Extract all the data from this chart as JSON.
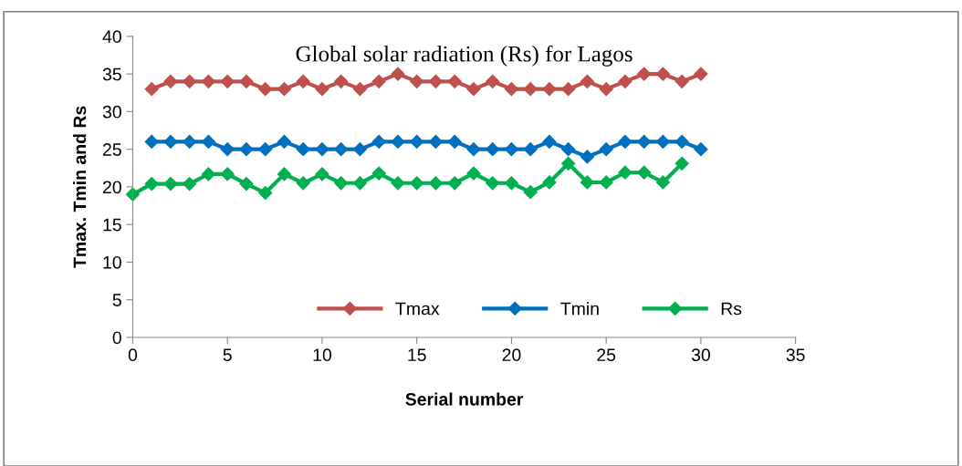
{
  "chart_data": {
    "type": "line",
    "title": "Global solar radiation (Rs) for Lagos",
    "xlabel": "Serial number",
    "ylabel": "Tmax. Tmin and Rs",
    "xlim": [
      0,
      35
    ],
    "xticks": [
      0,
      5,
      10,
      15,
      20,
      25,
      30,
      35
    ],
    "ylim": [
      0,
      40
    ],
    "yticks": [
      0,
      5,
      10,
      15,
      20,
      25,
      30,
      35,
      40
    ],
    "grid": false,
    "legend": "bottom",
    "marker": "diamond",
    "line_style": "solid",
    "series": [
      {
        "name": "Tmax",
        "color": "#c0504d",
        "x": [
          1,
          2,
          3,
          4,
          5,
          6,
          7,
          8,
          9,
          10,
          11,
          12,
          13,
          14,
          15,
          16,
          17,
          18,
          19,
          20,
          21,
          22,
          23,
          24,
          25,
          26,
          27,
          28,
          29,
          30
        ],
        "values": [
          33,
          34,
          34,
          34,
          34,
          34,
          33,
          33,
          34,
          33,
          34,
          33,
          34,
          35,
          34,
          34,
          34,
          33,
          34,
          33,
          33,
          33,
          33,
          34,
          33,
          34,
          35,
          35,
          34,
          35
        ]
      },
      {
        "name": "Tmin",
        "color": "#0070c0",
        "x": [
          1,
          2,
          3,
          4,
          5,
          6,
          7,
          8,
          9,
          10,
          11,
          12,
          13,
          14,
          15,
          16,
          17,
          18,
          19,
          20,
          21,
          22,
          23,
          24,
          25,
          26,
          27,
          28,
          29,
          30
        ],
        "values": [
          26,
          26,
          26,
          26,
          25,
          25,
          25,
          26,
          25,
          25,
          25,
          25,
          26,
          26,
          26,
          26,
          26,
          25,
          25,
          25,
          25,
          26,
          25,
          24,
          25,
          26,
          26,
          26,
          26,
          25
        ]
      },
      {
        "name": "Rs",
        "color": "#00b050",
        "x": [
          0,
          1,
          2,
          3,
          4,
          5,
          6,
          7,
          8,
          9,
          10,
          11,
          12,
          13,
          14,
          15,
          16,
          17,
          18,
          19,
          20,
          21,
          22,
          23,
          24,
          25,
          26,
          27,
          28,
          29
        ],
        "values": [
          19.0,
          20.4,
          20.4,
          20.4,
          21.7,
          21.7,
          20.4,
          19.2,
          21.7,
          20.5,
          21.7,
          20.5,
          20.5,
          21.8,
          20.5,
          20.5,
          20.5,
          20.5,
          21.8,
          20.5,
          20.5,
          19.3,
          20.6,
          23.1,
          20.6,
          20.6,
          21.9,
          21.9,
          20.6,
          23.1
        ]
      }
    ]
  }
}
